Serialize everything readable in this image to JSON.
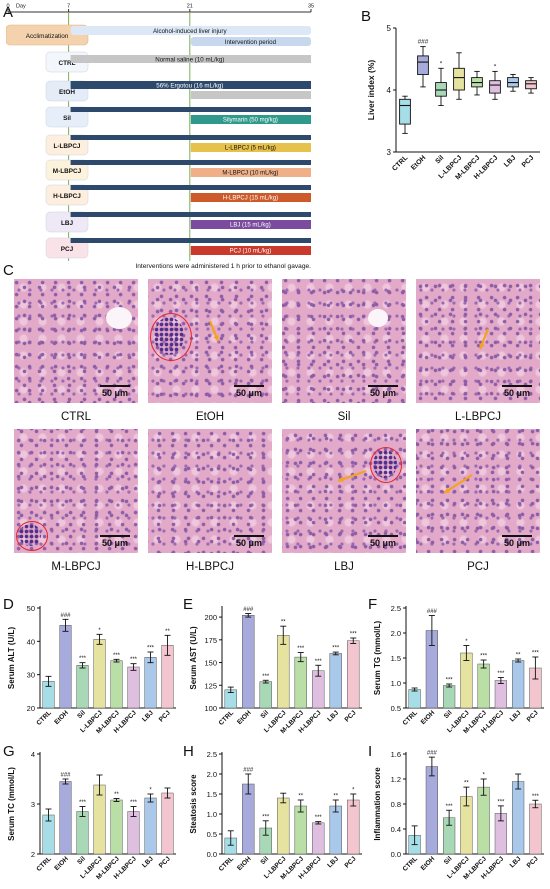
{
  "panel_letters": {
    "a": "A",
    "b": "B",
    "c": "C",
    "d": "D",
    "e": "E",
    "f": "F",
    "g": "G",
    "h": "H",
    "i": "I"
  },
  "colors": {
    "ctrl": "#a6dde6",
    "etoh": "#a7abdb",
    "sil": "#a8d8b6",
    "l_lbpcj": "#e6e3a1",
    "m_lbpcj": "#b9dea6",
    "h_lbpcj": "#dfbfe0",
    "lbj": "#a9c8ea",
    "pcj": "#f3c6cf"
  },
  "timeline": {
    "day_label": "Day",
    "ticks": [
      "0",
      "7",
      "21",
      "35"
    ],
    "acclimatization": "Acclimatization",
    "alcohol_injury": "Alcohol-induced liver injury",
    "intervention_period": "Intervention period",
    "groups": [
      {
        "name": "CTRL",
        "bar": "Normal saline (10 mL/kg)"
      },
      {
        "name": "EtOH",
        "bar": "56% Ergotou (16 mL/kg)"
      },
      {
        "name": "Sil",
        "bar": "Silymarin (50 mg/kg)"
      },
      {
        "name": "L-LBPCJ",
        "bar": "L-LBPCJ (5 mL/kg)"
      },
      {
        "name": "M-LBPCJ",
        "bar": "M-LBPCJ (10 mL/kg)"
      },
      {
        "name": "H-LBPCJ",
        "bar": "H-LBPCJ (15 mL/kg)"
      },
      {
        "name": "LBJ",
        "bar": "LBJ (15 mL/kg)"
      },
      {
        "name": "PCJ",
        "bar": "PCJ (10 mL/kg)"
      }
    ],
    "footnote": "Interventions were administered 1 h prior to ethanol gavage."
  },
  "histology": {
    "scale": "50 μm",
    "labels": [
      "CTRL",
      "EtOH",
      "Sil",
      "L-LBPCJ",
      "M-LBPCJ",
      "H-LBPCJ",
      "LBJ",
      "PCJ"
    ]
  },
  "chart_data": [
    {
      "panel": "B",
      "type": "box",
      "ylabel": "Liver index (%)",
      "ylim": [
        3,
        5
      ],
      "yticks": [
        3,
        4,
        5
      ],
      "categories": [
        "CTRL",
        "EtOH",
        "Sil",
        "L-LBPCJ",
        "M-LBPCJ",
        "H-LBPCJ",
        "LBJ",
        "PCJ"
      ],
      "boxes": [
        {
          "min": 3.3,
          "q1": 3.45,
          "median": 3.75,
          "q3": 3.85,
          "max": 3.9
        },
        {
          "min": 4.05,
          "q1": 4.25,
          "median": 4.45,
          "q3": 4.55,
          "max": 4.7
        },
        {
          "min": 3.75,
          "q1": 3.9,
          "median": 4.0,
          "q3": 4.12,
          "max": 4.35
        },
        {
          "min": 3.85,
          "q1": 4.0,
          "median": 4.2,
          "q3": 4.35,
          "max": 4.6
        },
        {
          "min": 3.92,
          "q1": 4.05,
          "median": 4.12,
          "q3": 4.2,
          "max": 4.3
        },
        {
          "min": 3.85,
          "q1": 3.95,
          "median": 4.08,
          "q3": 4.15,
          "max": 4.3
        },
        {
          "min": 3.98,
          "q1": 4.05,
          "median": 4.12,
          "q3": 4.2,
          "max": 4.25
        },
        {
          "min": 3.95,
          "q1": 4.02,
          "median": 4.1,
          "q3": 4.15,
          "max": 4.2
        }
      ],
      "annotations": [
        "",
        "###",
        "*",
        "",
        "",
        "*",
        "",
        ""
      ]
    },
    {
      "panel": "D",
      "type": "bar",
      "ylabel": "Serum ALT (U/L)",
      "ylim": [
        20,
        50
      ],
      "yticks": [
        20,
        30,
        40,
        50
      ],
      "categories": [
        "CTRL",
        "EtOH",
        "Sil",
        "L-LBPCJ",
        "M-LBPCJ",
        "H-LBPCJ",
        "LBJ",
        "PCJ"
      ],
      "values": [
        28,
        44.8,
        32.8,
        40.6,
        34.2,
        32.3,
        35.2,
        38.8
      ],
      "errors": [
        1.5,
        1.8,
        0.8,
        1.5,
        0.4,
        1.0,
        1.6,
        3.0
      ],
      "annotations": [
        "",
        "###",
        "***",
        "*",
        "***",
        "***",
        "***",
        "**"
      ]
    },
    {
      "panel": "E",
      "type": "bar",
      "ylabel": "Serum AST (U/L)",
      "ylim": [
        100,
        210
      ],
      "yticks": [
        100,
        125,
        150,
        175,
        200
      ],
      "categories": [
        "CTRL",
        "EtOH",
        "Sil",
        "L-LBPCJ",
        "M-LBPCJ",
        "H-LBPCJ",
        "LBJ",
        "PCJ"
      ],
      "values": [
        120,
        202,
        129,
        180,
        156,
        141,
        160,
        174
      ],
      "errors": [
        3,
        2,
        1.5,
        10,
        5,
        6,
        1.5,
        3
      ],
      "annotations": [
        "",
        "###",
        "***",
        "**",
        "***",
        "***",
        "***",
        "***"
      ]
    },
    {
      "panel": "F",
      "type": "bar",
      "ylabel": "Serum TG (mmol/L)",
      "ylim": [
        0.5,
        2.5
      ],
      "yticks": [
        0.5,
        1.0,
        1.5,
        2.0,
        2.5
      ],
      "categories": [
        "CTRL",
        "EtOH",
        "Sil",
        "L-LBPCJ",
        "M-LBPCJ",
        "H-LBPCJ",
        "LBJ",
        "PCJ"
      ],
      "values": [
        0.87,
        2.05,
        0.95,
        1.6,
        1.38,
        1.05,
        1.45,
        1.3
      ],
      "errors": [
        0.03,
        0.3,
        0.03,
        0.15,
        0.08,
        0.06,
        0.03,
        0.22
      ],
      "annotations": [
        "",
        "###",
        "***",
        "*",
        "***",
        "***",
        "**",
        "***"
      ]
    },
    {
      "panel": "G",
      "type": "bar",
      "ylabel": "Serum TC (mmol/L)",
      "ylim": [
        2,
        4
      ],
      "yticks": [
        2,
        3,
        4
      ],
      "categories": [
        "CTRL",
        "EtOH",
        "Sil",
        "L-LBPCJ",
        "M-LBPCJ",
        "H-LBPCJ",
        "LBJ",
        "PCJ"
      ],
      "values": [
        2.78,
        3.45,
        2.85,
        3.38,
        3.08,
        2.85,
        3.12,
        3.22
      ],
      "errors": [
        0.12,
        0.05,
        0.1,
        0.2,
        0.03,
        0.1,
        0.08,
        0.1
      ],
      "annotations": [
        "",
        "###",
        "***",
        "",
        "**",
        "***",
        "*",
        ""
      ]
    },
    {
      "panel": "H",
      "type": "bar",
      "ylabel": "Steatosis score",
      "ylim": [
        0,
        2.5
      ],
      "yticks": [
        0.0,
        0.5,
        1.0,
        1.5,
        2.0,
        2.5
      ],
      "categories": [
        "CTRL",
        "EtOH",
        "Sil",
        "L-LBPCJ",
        "M-LBPCJ",
        "H-LBPCJ",
        "LBJ",
        "PCJ"
      ],
      "values": [
        0.4,
        1.75,
        0.65,
        1.4,
        1.2,
        0.78,
        1.2,
        1.35
      ],
      "errors": [
        0.18,
        0.25,
        0.18,
        0.12,
        0.15,
        0.03,
        0.15,
        0.15
      ],
      "annotations": [
        "",
        "###",
        "***",
        "",
        "**",
        "***",
        "**",
        "*"
      ]
    },
    {
      "panel": "I",
      "type": "bar",
      "ylabel": "Inflammation score",
      "ylim": [
        0,
        1.6
      ],
      "yticks": [
        0.0,
        0.4,
        0.8,
        1.2,
        1.6
      ],
      "categories": [
        "CTRL",
        "EtOH",
        "Sil",
        "L-LBPCJ",
        "M-LBPCJ",
        "H-LBPCJ",
        "LBJ",
        "PCJ"
      ],
      "values": [
        0.3,
        1.4,
        0.58,
        0.92,
        1.07,
        0.65,
        1.16,
        0.8
      ],
      "errors": [
        0.15,
        0.15,
        0.12,
        0.15,
        0.13,
        0.12,
        0.12,
        0.06
      ],
      "annotations": [
        "",
        "###",
        "***",
        "**",
        "*",
        "***",
        "",
        "***"
      ]
    }
  ]
}
